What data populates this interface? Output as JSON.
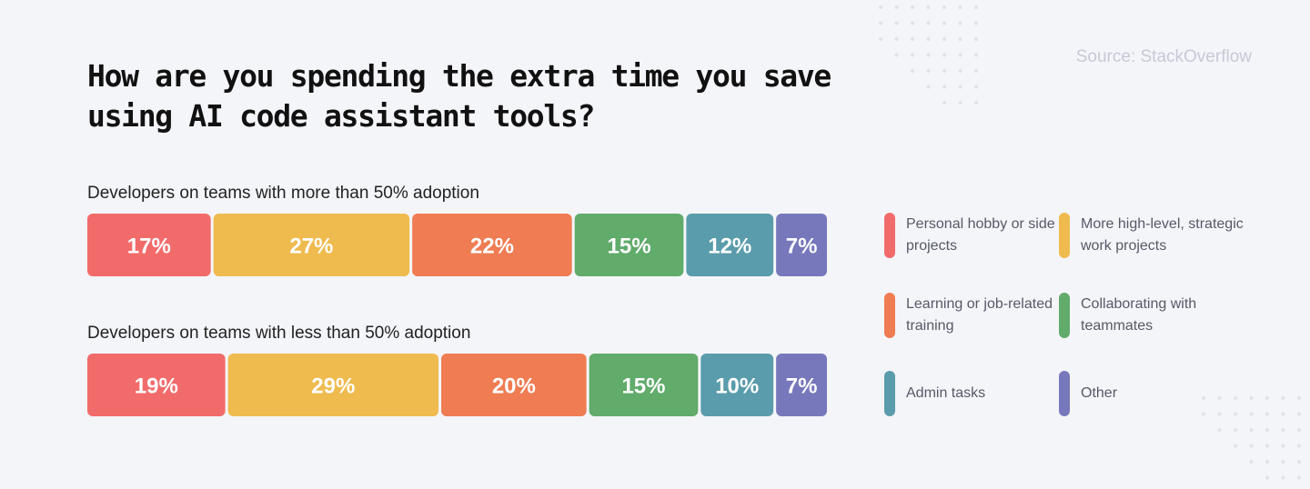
{
  "title": "How are you spending the extra time you save using AI code assistant tools?",
  "source": "Source: StackOverflow",
  "chart_data": {
    "type": "bar",
    "orientation": "horizontal-stacked",
    "title": "How are you spending the extra time you save using AI code assistant tools?",
    "unit": "%",
    "categories": [
      "Developers on teams with more than 50% adoption",
      "Developers on teams with less than 50% adoption"
    ],
    "series": [
      {
        "name": "Personal hobby or side projects",
        "color": "#f26b6b",
        "values": [
          17,
          19
        ]
      },
      {
        "name": "More high-level, strategic work projects",
        "color": "#efbb4e",
        "values": [
          27,
          29
        ]
      },
      {
        "name": "Learning or job-related training",
        "color": "#ef7c52",
        "values": [
          22,
          20
        ]
      },
      {
        "name": "Collaborating with teammates",
        "color": "#61ab6b",
        "values": [
          15,
          15
        ]
      },
      {
        "name": "Admin tasks",
        "color": "#5a9cab",
        "values": [
          12,
          10
        ]
      },
      {
        "name": "Other",
        "color": "#7778bb",
        "values": [
          7,
          7
        ]
      }
    ],
    "legend_position": "right",
    "grid": false
  },
  "legend": [
    {
      "label": "Personal hobby or side projects",
      "color": "#f26b6b"
    },
    {
      "label": "More high-level, strategic work projects",
      "color": "#efbb4e"
    },
    {
      "label": "Learning or job-related training",
      "color": "#ef7c52"
    },
    {
      "label": "Collaborating with teammates",
      "color": "#61ab6b"
    },
    {
      "label": "Admin tasks",
      "color": "#5a9cab"
    },
    {
      "label": "Other",
      "color": "#7778bb"
    }
  ]
}
